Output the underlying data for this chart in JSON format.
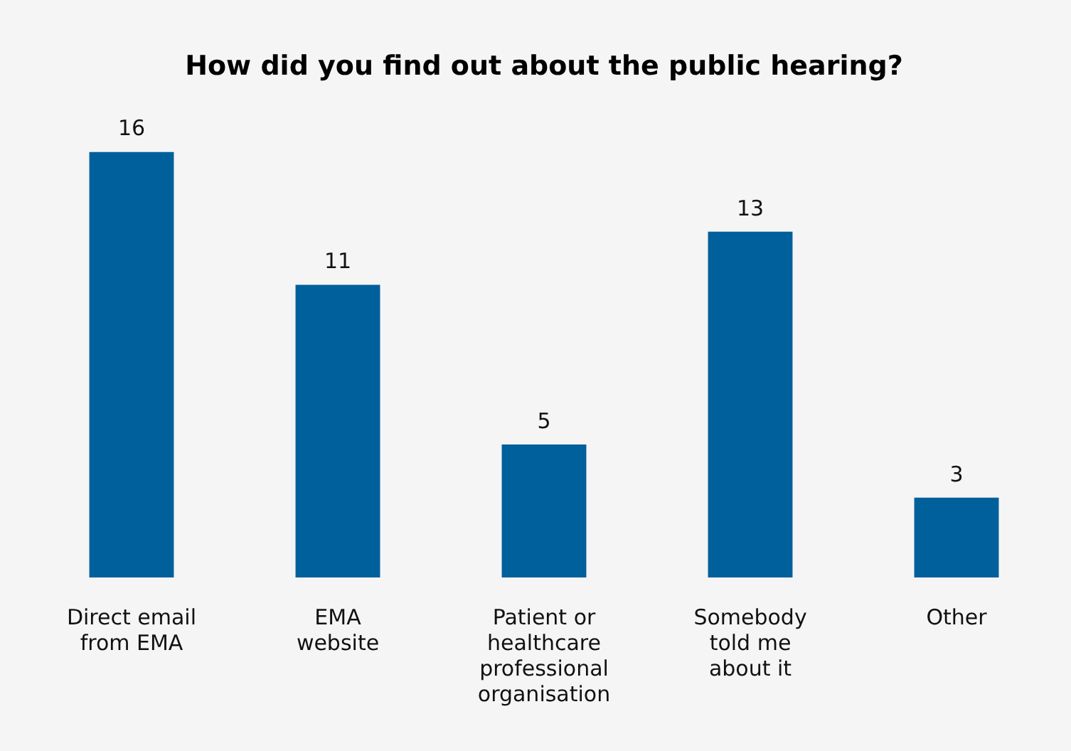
{
  "chart_data": {
    "type": "bar",
    "title": "How did you find out about the public hearing?",
    "categories": [
      "Direct email\nfrom EMA",
      "EMA\nwebsite",
      "Patient or\nhealthcare\nprofessional\norganisation",
      "Somebody\ntold me\nabout it",
      "Other"
    ],
    "values": [
      16,
      11,
      5,
      13,
      3
    ],
    "color": "#00609c",
    "data_labels": true,
    "grid": false,
    "legend": false
  }
}
